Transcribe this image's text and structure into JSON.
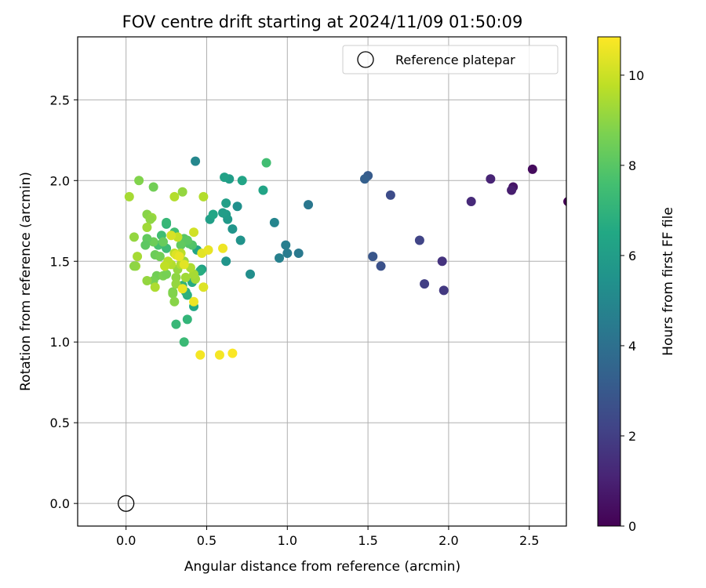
{
  "chart_data": {
    "type": "scatter",
    "title": "FOV centre drift starting at 2024/11/09 01:50:09",
    "xlabel": "Angular distance from reference (arcmin)",
    "ylabel": "Rotation from reference (arcmin)",
    "xlim": [
      -0.3,
      2.73
    ],
    "ylim": [
      -0.14,
      2.89
    ],
    "xticks": [
      "0.0",
      "0.5",
      "1.0",
      "1.5",
      "2.0",
      "2.5"
    ],
    "yticks": [
      "0.0",
      "0.5",
      "1.0",
      "1.5",
      "2.0",
      "2.5"
    ],
    "grid": true,
    "legend": {
      "placement": "top-right",
      "entries": [
        "Reference platepar"
      ]
    },
    "reference_point": {
      "x": 0.0,
      "y": 0.0
    },
    "colorbar": {
      "label": "Hours from first FF file",
      "range": [
        0,
        10.85
      ],
      "ticks": [
        "0",
        "2",
        "4",
        "6",
        "8",
        "10"
      ],
      "colormap": "viridis"
    },
    "points": [
      [
        2.74,
        1.87,
        0.0
      ],
      [
        2.52,
        2.07,
        0.3
      ],
      [
        2.4,
        1.96,
        0.6
      ],
      [
        2.39,
        1.94,
        0.9
      ],
      [
        2.26,
        2.01,
        1.1
      ],
      [
        2.14,
        1.87,
        1.3
      ],
      [
        1.96,
        1.5,
        1.6
      ],
      [
        1.97,
        1.32,
        1.8
      ],
      [
        1.85,
        1.36,
        2.0
      ],
      [
        1.82,
        1.63,
        2.2
      ],
      [
        1.64,
        1.91,
        2.5
      ],
      [
        1.58,
        1.47,
        2.7
      ],
      [
        1.53,
        1.53,
        2.9
      ],
      [
        1.5,
        2.03,
        3.1
      ],
      [
        1.48,
        2.01,
        3.3
      ],
      [
        1.13,
        1.85,
        4.3
      ],
      [
        1.07,
        1.55,
        4.4
      ],
      [
        1.0,
        1.55,
        4.5
      ],
      [
        0.99,
        1.6,
        4.6
      ],
      [
        0.95,
        1.52,
        4.7
      ],
      [
        0.92,
        1.74,
        4.9
      ],
      [
        0.43,
        2.12,
        5.0
      ],
      [
        0.77,
        1.42,
        5.3
      ],
      [
        0.69,
        1.84,
        5.4
      ],
      [
        0.66,
        1.7,
        5.6
      ],
      [
        0.71,
        1.63,
        5.5
      ],
      [
        0.62,
        1.5,
        5.6
      ],
      [
        0.63,
        1.76,
        5.8
      ],
      [
        0.62,
        1.79,
        5.9
      ],
      [
        0.6,
        1.8,
        6.0
      ],
      [
        0.62,
        1.86,
        6.1
      ],
      [
        0.64,
        2.01,
        6.0
      ],
      [
        0.61,
        2.02,
        6.2
      ],
      [
        0.72,
        2.0,
        6.3
      ],
      [
        0.85,
        1.94,
        6.3
      ],
      [
        0.52,
        1.76,
        6.1
      ],
      [
        0.54,
        1.79,
        6.4
      ],
      [
        0.47,
        1.45,
        6.2
      ],
      [
        0.44,
        1.57,
        6.3
      ],
      [
        0.42,
        1.22,
        6.5
      ],
      [
        0.41,
        1.37,
        6.6
      ],
      [
        0.38,
        1.29,
        6.8
      ],
      [
        0.37,
        1.31,
        6.9
      ],
      [
        0.46,
        1.44,
        6.7
      ],
      [
        0.35,
        1.35,
        7.0
      ],
      [
        0.38,
        1.14,
        7.1
      ],
      [
        0.31,
        1.11,
        7.2
      ],
      [
        0.36,
        1.0,
        7.3
      ],
      [
        0.25,
        1.73,
        7.0
      ],
      [
        0.25,
        1.74,
        7.2
      ],
      [
        0.25,
        1.58,
        7.4
      ],
      [
        0.3,
        1.68,
        7.5
      ],
      [
        0.22,
        1.66,
        7.5
      ],
      [
        0.2,
        1.6,
        7.6
      ],
      [
        0.87,
        2.11,
        7.5
      ],
      [
        0.41,
        1.6,
        7.8
      ],
      [
        0.39,
        1.61,
        7.9
      ],
      [
        0.36,
        1.64,
        8.0
      ],
      [
        0.38,
        1.63,
        8.1
      ],
      [
        0.34,
        1.6,
        8.2
      ],
      [
        0.23,
        1.62,
        8.3
      ],
      [
        0.17,
        1.62,
        8.4
      ],
      [
        0.13,
        1.64,
        8.2
      ],
      [
        0.12,
        1.6,
        8.1
      ],
      [
        0.18,
        1.54,
        8.4
      ],
      [
        0.21,
        1.53,
        8.5
      ],
      [
        0.19,
        1.41,
        8.5
      ],
      [
        0.17,
        1.38,
        8.6
      ],
      [
        0.23,
        1.41,
        8.7
      ],
      [
        0.25,
        1.42,
        8.6
      ],
      [
        0.29,
        1.31,
        8.7
      ],
      [
        0.29,
        1.3,
        8.8
      ],
      [
        0.3,
        1.25,
        8.9
      ],
      [
        0.31,
        1.4,
        9.0
      ],
      [
        0.31,
        1.36,
        9.1
      ],
      [
        0.32,
        1.45,
        9.1
      ],
      [
        0.36,
        1.5,
        9.2
      ],
      [
        0.37,
        1.4,
        9.3
      ],
      [
        0.43,
        1.39,
        9.3
      ],
      [
        0.42,
        1.42,
        9.4
      ],
      [
        0.4,
        1.46,
        9.5
      ],
      [
        0.34,
        1.48,
        9.5
      ],
      [
        0.28,
        1.48,
        9.6
      ],
      [
        0.26,
        1.5,
        9.7
      ],
      [
        0.24,
        1.47,
        9.8
      ],
      [
        0.3,
        1.55,
        9.8
      ],
      [
        0.34,
        1.55,
        9.7
      ],
      [
        0.08,
        2.0,
        8.8
      ],
      [
        0.17,
        1.96,
        8.5
      ],
      [
        0.13,
        1.79,
        8.9
      ],
      [
        0.16,
        1.77,
        9.2
      ],
      [
        0.15,
        1.76,
        9.0
      ],
      [
        0.13,
        1.71,
        9.3
      ],
      [
        0.05,
        1.65,
        9.1
      ],
      [
        0.07,
        1.53,
        9.4
      ],
      [
        0.06,
        1.47,
        9.2
      ],
      [
        0.05,
        1.47,
        9.0
      ],
      [
        0.13,
        1.38,
        9.1
      ],
      [
        0.18,
        1.34,
        9.5
      ],
      [
        0.35,
        1.93,
        9.1
      ],
      [
        0.3,
        1.9,
        9.6
      ],
      [
        0.48,
        1.9,
        9.6
      ],
      [
        0.02,
        1.9,
        9.4
      ],
      [
        0.32,
        1.65,
        9.9
      ],
      [
        0.42,
        1.68,
        10.1
      ],
      [
        0.28,
        1.66,
        10.2
      ],
      [
        0.31,
        1.54,
        10.3
      ],
      [
        0.36,
        1.48,
        10.4
      ],
      [
        0.33,
        1.53,
        10.5
      ],
      [
        0.48,
        1.34,
        10.3
      ],
      [
        0.35,
        1.33,
        10.5
      ],
      [
        0.42,
        1.25,
        10.6
      ],
      [
        0.47,
        1.55,
        10.4
      ],
      [
        0.51,
        1.57,
        10.5
      ],
      [
        0.6,
        1.58,
        10.6
      ],
      [
        0.46,
        0.92,
        10.7
      ],
      [
        0.58,
        0.92,
        10.7
      ],
      [
        0.66,
        0.93,
        10.8
      ]
    ]
  }
}
